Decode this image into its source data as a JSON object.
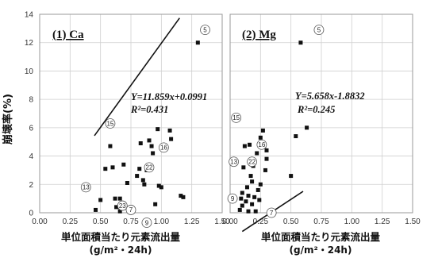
{
  "chart_data": [
    {
      "type": "scatter",
      "title": "(1) Ca",
      "xlabel": "単位面積当たり元素流出量",
      "xlabel_unit": "(g/m²・24h)",
      "ylabel": "崩壊率(%)",
      "xlim": [
        0,
        1.5
      ],
      "ylim": [
        0,
        14
      ],
      "xticks": [
        "0.00",
        "0.25",
        "0.50",
        "0.75",
        "1.00",
        "1.25",
        "1.50"
      ],
      "yticks": [
        "0",
        "2",
        "4",
        "6",
        "8",
        "10",
        "12",
        "14"
      ],
      "grid": true,
      "equation": "Y=11.859x+0.0991",
      "r2": "R²=0.431",
      "trendline": {
        "slope": 11.859,
        "intercept": 0.0991,
        "x_range": [
          0.45,
          1.15
        ]
      },
      "points": [
        {
          "x": 0.46,
          "y": 0.2
        },
        {
          "x": 0.5,
          "y": 0.9
        },
        {
          "x": 0.54,
          "y": 3.1
        },
        {
          "x": 0.58,
          "y": 4.7
        },
        {
          "x": 0.6,
          "y": 3.2
        },
        {
          "x": 0.62,
          "y": 1.0
        },
        {
          "x": 0.63,
          "y": 0.4
        },
        {
          "x": 0.66,
          "y": 0.1
        },
        {
          "x": 0.66,
          "y": 1.0
        },
        {
          "x": 0.69,
          "y": 3.4
        },
        {
          "x": 0.72,
          "y": 2.1
        },
        {
          "x": 0.75,
          "y": 0.4
        },
        {
          "x": 0.8,
          "y": 2.6
        },
        {
          "x": 0.82,
          "y": 3.1
        },
        {
          "x": 0.83,
          "y": 4.9
        },
        {
          "x": 0.85,
          "y": 2.3
        },
        {
          "x": 0.86,
          "y": 2.0
        },
        {
          "x": 0.88,
          "y": 3.0
        },
        {
          "x": 0.9,
          "y": 5.1
        },
        {
          "x": 0.92,
          "y": 4.7
        },
        {
          "x": 0.93,
          "y": 4.2
        },
        {
          "x": 0.95,
          "y": 0.6
        },
        {
          "x": 0.97,
          "y": 5.9
        },
        {
          "x": 0.98,
          "y": 1.9
        },
        {
          "x": 1.0,
          "y": 1.8
        },
        {
          "x": 1.07,
          "y": 5.8
        },
        {
          "x": 1.08,
          "y": 5.2
        },
        {
          "x": 1.16,
          "y": 1.2
        },
        {
          "x": 1.18,
          "y": 1.1
        },
        {
          "x": 1.3,
          "y": 12.0
        }
      ],
      "labels": [
        {
          "text": "5",
          "x": 1.36,
          "y": 12.9
        },
        {
          "text": "15",
          "x": 0.58,
          "y": 6.3
        },
        {
          "text": "16",
          "x": 1.02,
          "y": 4.6
        },
        {
          "text": "22",
          "x": 0.9,
          "y": 3.2
        },
        {
          "text": "13",
          "x": 0.38,
          "y": 1.8
        },
        {
          "text": "23",
          "x": 0.68,
          "y": 0.5
        },
        {
          "text": "7",
          "x": 0.75,
          "y": 0.2
        },
        {
          "text": "9",
          "x": 0.88,
          "y": -0.7
        }
      ]
    },
    {
      "type": "scatter",
      "title": "(2) Mg",
      "xlabel": "単位面積当たり元素流出量",
      "xlabel_unit": "(g/m²・24h)",
      "xlim": [
        0,
        1.5
      ],
      "ylim": [
        0,
        14
      ],
      "xticks": [
        "0.00",
        "0.25",
        "0.50",
        "0.75",
        "1.00",
        "1.25",
        "1.50"
      ],
      "grid": true,
      "equation": "Y=5.658x-1.8832",
      "r2": "R²=0.245",
      "trendline": {
        "slope": 5.658,
        "intercept": -1.8832,
        "x_range": [
          0.1,
          0.6
        ]
      },
      "points": [
        {
          "x": 0.08,
          "y": 0.2
        },
        {
          "x": 0.09,
          "y": 1.0
        },
        {
          "x": 0.1,
          "y": 0.5
        },
        {
          "x": 0.1,
          "y": 1.4
        },
        {
          "x": 0.11,
          "y": 3.2
        },
        {
          "x": 0.12,
          "y": 4.7
        },
        {
          "x": 0.13,
          "y": 0.8
        },
        {
          "x": 0.14,
          "y": 1.8
        },
        {
          "x": 0.15,
          "y": 1.2
        },
        {
          "x": 0.15,
          "y": 0.1
        },
        {
          "x": 0.16,
          "y": 4.8
        },
        {
          "x": 0.17,
          "y": 2.6
        },
        {
          "x": 0.18,
          "y": 0.6
        },
        {
          "x": 0.18,
          "y": 2.2
        },
        {
          "x": 0.19,
          "y": 3.3
        },
        {
          "x": 0.2,
          "y": 1.1
        },
        {
          "x": 0.21,
          "y": 0.1
        },
        {
          "x": 0.22,
          "y": 4.2
        },
        {
          "x": 0.23,
          "y": 1.6
        },
        {
          "x": 0.24,
          "y": 0.9
        },
        {
          "x": 0.25,
          "y": 5.3
        },
        {
          "x": 0.25,
          "y": 2.0
        },
        {
          "x": 0.27,
          "y": 5.8
        },
        {
          "x": 0.28,
          "y": 4.7
        },
        {
          "x": 0.29,
          "y": 3.0
        },
        {
          "x": 0.3,
          "y": 4.4
        },
        {
          "x": 0.3,
          "y": 3.8
        },
        {
          "x": 0.5,
          "y": 2.6
        },
        {
          "x": 0.54,
          "y": 5.4
        },
        {
          "x": 0.58,
          "y": 12.0
        },
        {
          "x": 0.63,
          "y": 6.0
        }
      ],
      "labels": [
        {
          "text": "5",
          "x": 0.73,
          "y": 12.9
        },
        {
          "text": "15",
          "x": 0.05,
          "y": 6.7
        },
        {
          "text": "16",
          "x": 0.26,
          "y": 4.8
        },
        {
          "text": "13",
          "x": 0.03,
          "y": 3.6
        },
        {
          "text": "22",
          "x": 0.18,
          "y": 3.6
        },
        {
          "text": "9",
          "x": 0.02,
          "y": 1.0
        },
        {
          "text": "7",
          "x": 0.34,
          "y": 0.0
        }
      ]
    }
  ]
}
